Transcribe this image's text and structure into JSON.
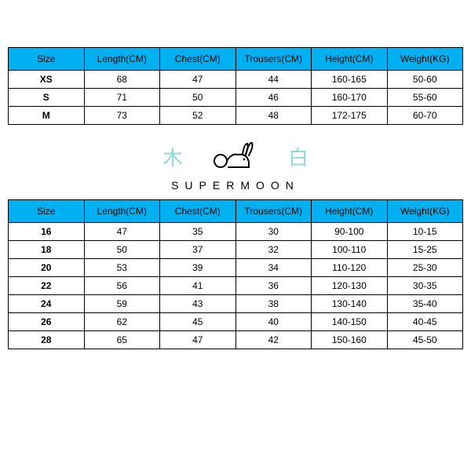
{
  "colors": {
    "header_bg": "#00b0f0",
    "border": "#000000",
    "cell_bg": "#ffffff",
    "text": "#000000",
    "accent_cjk": "#8fd9d6"
  },
  "columns": [
    "Size",
    "Length(CM)",
    "Chest(CM)",
    "Trousers(CM)",
    "Height(CM)",
    "Weight(KG)"
  ],
  "adult_table": {
    "rows": [
      [
        "XS",
        "68",
        "47",
        "44",
        "160-165",
        "50-60"
      ],
      [
        "S",
        "71",
        "50",
        "46",
        "160-170",
        "55-60"
      ],
      [
        "M",
        "73",
        "52",
        "48",
        "172-175",
        "60-70"
      ]
    ]
  },
  "brand": {
    "left_char": "木",
    "right_char": "白",
    "wordmark": "SUPERMOON"
  },
  "kids_table": {
    "rows": [
      [
        "16",
        "47",
        "35",
        "30",
        "90-100",
        "10-15"
      ],
      [
        "18",
        "50",
        "37",
        "32",
        "100-110",
        "15-25"
      ],
      [
        "20",
        "53",
        "39",
        "34",
        "110-120",
        "25-30"
      ],
      [
        "22",
        "56",
        "41",
        "36",
        "120-130",
        "30-35"
      ],
      [
        "24",
        "59",
        "43",
        "38",
        "130-140",
        "35-40"
      ],
      [
        "26",
        "62",
        "45",
        "40",
        "140-150",
        "40-45"
      ],
      [
        "28",
        "65",
        "47",
        "42",
        "150-160",
        "45-50"
      ]
    ]
  }
}
